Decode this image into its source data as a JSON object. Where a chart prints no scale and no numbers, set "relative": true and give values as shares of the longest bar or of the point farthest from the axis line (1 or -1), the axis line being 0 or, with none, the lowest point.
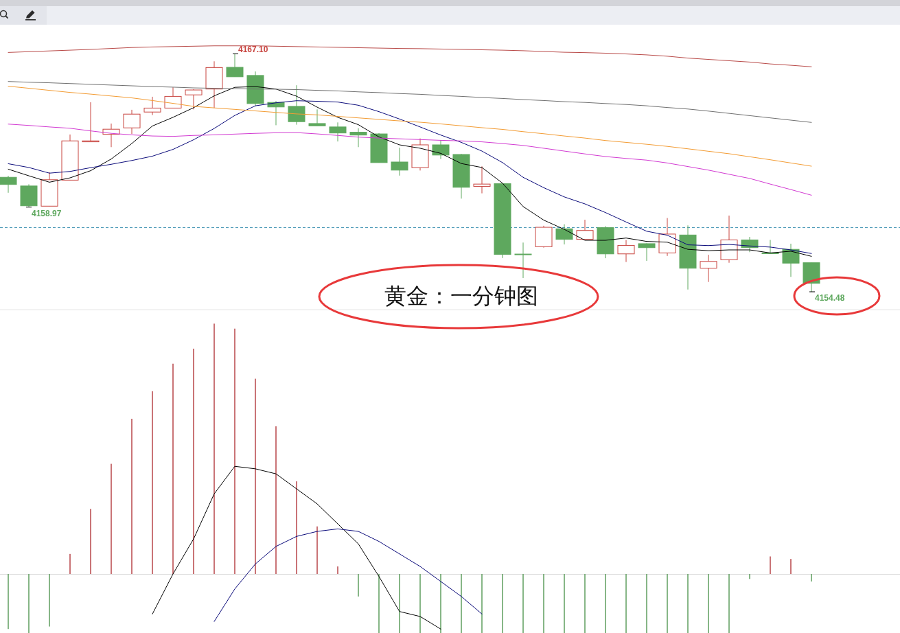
{
  "chart_data": [
    {
      "type": "candlestick",
      "categories": [
        null,
        null,
        null,
        null,
        null,
        null,
        null,
        null,
        null,
        null,
        null,
        null,
        null,
        null,
        null,
        null,
        null,
        null,
        null,
        null,
        null,
        null,
        null,
        null,
        null,
        null,
        null,
        null,
        null,
        null,
        null,
        null,
        null,
        null,
        null,
        null,
        null,
        null,
        null,
        null
      ],
      "ohlc": [
        [
          4160.55,
          4160.63,
          4159.73,
          4160.17
        ],
        [
          4160.09,
          4160.18,
          4158.97,
          4159.04
        ],
        [
          4159.02,
          4160.82,
          4159.02,
          4160.42
        ],
        [
          4160.4,
          4162.82,
          4160.4,
          4162.48
        ],
        [
          4162.43,
          4164.53,
          4162.43,
          4162.48
        ],
        [
          4162.83,
          4163.4,
          4162.15,
          4163.1
        ],
        [
          4163.17,
          4164.13,
          4162.85,
          4163.9
        ],
        [
          4164.01,
          4164.82,
          4163.85,
          4164.22
        ],
        [
          4164.22,
          4165.32,
          4164.22,
          4164.84
        ],
        [
          4164.92,
          4165.22,
          4164.15,
          4165.18
        ],
        [
          4165.23,
          4166.7,
          4164.22,
          4166.37
        ],
        [
          4166.38,
          4167.1,
          4165.88,
          4165.88
        ],
        [
          4165.95,
          4166.16,
          4164.31,
          4164.46
        ],
        [
          4164.52,
          4164.59,
          4163.31,
          4164.28
        ],
        [
          4164.31,
          4165.43,
          4163.34,
          4163.5
        ],
        [
          4163.4,
          4164.15,
          4163.28,
          4163.28
        ],
        [
          4163.22,
          4163.46,
          4162.45,
          4162.9
        ],
        [
          4162.94,
          4163.15,
          4162.15,
          4162.79
        ],
        [
          4162.85,
          4162.89,
          4161.33,
          4161.33
        ],
        [
          4161.36,
          4162.12,
          4160.64,
          4160.93
        ],
        [
          4161.06,
          4162.61,
          4160.91,
          4162.27
        ],
        [
          4162.27,
          4162.52,
          4161.52,
          4161.73
        ],
        [
          4161.76,
          4161.79,
          4159.42,
          4160.02
        ],
        [
          4160.07,
          4161.13,
          4159.7,
          4160.19
        ],
        [
          4160.21,
          4160.21,
          4156.27,
          4156.46
        ],
        [
          4156.48,
          4157.09,
          4155.21,
          4156.48
        ],
        [
          4156.87,
          4157.98,
          4156.82,
          4157.9
        ],
        [
          4157.82,
          4158.06,
          4156.99,
          4157.26
        ],
        [
          4157.26,
          4158.3,
          4157.26,
          4157.73
        ],
        [
          4157.88,
          4157.96,
          4156.26,
          4156.49
        ],
        [
          4156.49,
          4157.23,
          4156.06,
          4156.94
        ],
        [
          4157.03,
          4157.05,
          4156.12,
          4156.82
        ],
        [
          4156.54,
          4158.39,
          4156.38,
          4157.54
        ],
        [
          4157.49,
          4158.0,
          4154.6,
          4155.73
        ],
        [
          4155.73,
          4156.44,
          4155.0,
          4156.09
        ],
        [
          4156.18,
          4158.52,
          4156.02,
          4157.23
        ],
        [
          4157.23,
          4157.39,
          4156.58,
          4156.82
        ],
        [
          4156.54,
          4157.23,
          4156.54,
          4156.54
        ],
        [
          4156.73,
          4157.03,
          4155.27,
          4156.0
        ],
        [
          4156.02,
          4156.02,
          4154.48,
          4154.93
        ]
      ],
      "colors": [
        "#5ea85e",
        "#5ea85e",
        "#c8443f",
        "#c8443f",
        "#c8443f",
        "#c8443f",
        "#c8443f",
        "#c8443f",
        "#c8443f",
        "#c8443f",
        "#c8443f",
        "#5ea85e",
        "#5ea85e",
        "#5ea85e",
        "#5ea85e",
        "#5ea85e",
        "#5ea85e",
        "#5ea85e",
        "#5ea85e",
        "#5ea85e",
        "#c8443f",
        "#5ea85e",
        "#5ea85e",
        "#c8443f",
        "#5ea85e",
        "#5ea85e",
        "#c8443f",
        "#5ea85e",
        "#c8443f",
        "#5ea85e",
        "#c8443f",
        "#5ea85e",
        "#c8443f",
        "#5ea85e",
        "#c8443f",
        "#c8443f",
        "#5ea85e",
        "#5ea85e",
        "#5ea85e",
        "#5ea85e"
      ],
      "series": [
        {
          "type": "line",
          "color": "#000000",
          "values": [
            4160.98,
            4160.63,
            4160.29,
            4160.52,
            4160.9,
            4161.52,
            4162.34,
            4163.27,
            4163.73,
            4164.24,
            4164.87,
            4165.32,
            4165.36,
            4165.23,
            4164.85,
            4164.27,
            4163.73,
            4163.34,
            4162.69,
            4162.27,
            4162.09,
            4161.82,
            4161.28,
            4161.07,
            4160.24,
            4159.0,
            4158.28,
            4157.79,
            4157.21,
            4157.21,
            4157.33,
            4157.15,
            4157.11,
            4156.73,
            4156.66,
            4156.7,
            4156.7,
            4156.54,
            4156.63,
            4156.36
          ]
        },
        {
          "type": "line",
          "color": "#0a0a7a",
          "values": [
            4161.27,
            4161.07,
            4160.77,
            4160.86,
            4161.06,
            4161.24,
            4161.44,
            4161.67,
            4162.03,
            4162.54,
            4163.14,
            4163.83,
            4164.34,
            4164.5,
            4164.61,
            4164.58,
            4164.54,
            4164.37,
            4164.03,
            4163.64,
            4163.22,
            4162.79,
            4162.4,
            4161.94,
            4161.33,
            4160.55,
            4160.0,
            4159.51,
            4159.14,
            4158.68,
            4158.18,
            4157.69,
            4157.48,
            4156.97,
            4156.93,
            4156.99,
            4156.91,
            4156.85,
            4156.7,
            4156.51
          ]
        },
        {
          "type": "line",
          "color": "#d23ad2",
          "values": [
            4163.37,
            4163.3,
            4163.22,
            4163.15,
            4163.01,
            4162.88,
            4162.8,
            4162.74,
            4162.72,
            4162.77,
            4162.8,
            4162.84,
            4162.88,
            4162.91,
            4162.92,
            4162.85,
            4162.77,
            4162.68,
            4162.63,
            4162.59,
            4162.55,
            4162.51,
            4162.48,
            4162.43,
            4162.34,
            4162.24,
            4162.09,
            4161.94,
            4161.79,
            4161.65,
            4161.55,
            4161.46,
            4161.31,
            4161.12,
            4160.93,
            4160.71,
            4160.49,
            4160.19,
            4159.9,
            4159.6
          ]
        },
        {
          "type": "line",
          "color": "#f39c34",
          "values": [
            4165.38,
            4165.27,
            4165.16,
            4165.05,
            4164.96,
            4164.86,
            4164.76,
            4164.62,
            4164.47,
            4164.31,
            4164.23,
            4164.15,
            4164.07,
            4163.99,
            4163.91,
            4163.86,
            4163.78,
            4163.7,
            4163.62,
            4163.54,
            4163.47,
            4163.38,
            4163.28,
            4163.18,
            4163.09,
            4162.97,
            4162.86,
            4162.74,
            4162.63,
            4162.5,
            4162.4,
            4162.3,
            4162.19,
            4162.06,
            4161.93,
            4161.8,
            4161.64,
            4161.48,
            4161.31,
            4161.14
          ]
        },
        {
          "type": "line",
          "color": "#707070",
          "values": [
            4165.63,
            4165.59,
            4165.56,
            4165.52,
            4165.48,
            4165.44,
            4165.4,
            4165.36,
            4165.33,
            4165.29,
            4165.27,
            4165.25,
            4165.23,
            4165.22,
            4165.2,
            4165.16,
            4165.13,
            4165.08,
            4165.04,
            4164.99,
            4164.95,
            4164.89,
            4164.84,
            4164.78,
            4164.73,
            4164.67,
            4164.62,
            4164.56,
            4164.52,
            4164.46,
            4164.41,
            4164.34,
            4164.25,
            4164.17,
            4164.06,
            4163.94,
            4163.82,
            4163.7,
            4163.58,
            4163.46
          ]
        },
        {
          "type": "line",
          "color": "#b94a48",
          "values": [
            4167.17,
            4167.21,
            4167.25,
            4167.29,
            4167.33,
            4167.38,
            4167.43,
            4167.46,
            4167.48,
            4167.5,
            4167.52,
            4167.52,
            4167.52,
            4167.5,
            4167.48,
            4167.46,
            4167.44,
            4167.42,
            4167.4,
            4167.38,
            4167.37,
            4167.35,
            4167.33,
            4167.31,
            4167.29,
            4167.26,
            4167.22,
            4167.18,
            4167.16,
            4167.13,
            4167.09,
            4167.04,
            4166.97,
            4166.87,
            4166.8,
            4166.73,
            4166.66,
            4166.56,
            4166.49,
            4166.41
          ]
        }
      ],
      "ref_lines": [
        {
          "axis": "y",
          "value": 4157.88,
          "color": "#3a8fb0",
          "line_style": "dashed"
        }
      ],
      "annotations": [
        "4167.10",
        "4158.97",
        "4154.48",
        "黄金：一分钟图"
      ]
    },
    {
      "type": "bar",
      "relative": true,
      "categories": [
        null,
        null,
        null,
        null,
        null,
        null,
        null,
        null,
        null,
        null,
        null,
        null,
        null,
        null,
        null,
        null,
        null,
        null,
        null,
        null,
        null,
        null,
        null,
        null,
        null,
        null,
        null,
        null,
        null,
        null,
        null,
        null,
        null,
        null,
        null,
        null,
        null,
        null,
        null,
        null
      ],
      "series": [
        {
          "type": "bar",
          "colors": [
            "#5f9e5f",
            "#5f9e5f",
            "#5f9e5f",
            "#b8454a",
            "#b8454a",
            "#b8454a",
            "#b8454a",
            "#b8454a",
            "#b8454a",
            "#b8454a",
            "#b8454a",
            "#b8454a",
            "#b8454a",
            "#b8454a",
            "#b8454a",
            "#b8454a",
            "#b8454a",
            "#5f9e5f",
            "#5f9e5f",
            "#5f9e5f",
            "#5f9e5f",
            "#5f9e5f",
            "#5f9e5f",
            "#5f9e5f",
            "#5f9e5f",
            "#5f9e5f",
            "#5f9e5f",
            "#5f9e5f",
            "#5f9e5f",
            "#5f9e5f",
            "#5f9e5f",
            "#5f9e5f",
            "#5f9e5f",
            "#5f9e5f",
            "#5f9e5f",
            "#5f9e5f",
            "#5f9e5f",
            "#b8454a",
            "#b8454a",
            "#5f9e5f"
          ],
          "values": [
            -0.22,
            -0.24,
            -0.21,
            0.08,
            0.26,
            0.44,
            0.62,
            0.73,
            0.84,
            0.9,
            1,
            0.98,
            0.78,
            0.59,
            0.37,
            0.19,
            0.03,
            -0.09,
            -0.24,
            -0.24,
            -0.24,
            -0.24,
            -0.24,
            -0.24,
            -0.24,
            -0.24,
            -0.24,
            -0.24,
            -0.24,
            -0.24,
            -0.24,
            -0.24,
            -0.24,
            -0.24,
            -0.24,
            -0.24,
            -0.02,
            0.07,
            0.06,
            -0.03
          ]
        },
        {
          "type": "line",
          "color": "#000000",
          "values": [
            null,
            null,
            null,
            null,
            null,
            null,
            null,
            -0.16,
            0.0,
            0.14,
            0.32,
            0.43,
            0.42,
            0.4,
            0.34,
            0.28,
            0.2,
            0.12,
            -0.01,
            -0.15,
            -0.17,
            -0.22,
            null,
            null,
            null,
            null,
            null,
            null,
            null,
            null,
            null,
            null,
            null,
            null,
            null,
            null,
            null,
            null,
            null,
            null
          ]
        },
        {
          "type": "line",
          "color": "#0a0a7a",
          "values": [
            null,
            null,
            null,
            null,
            null,
            null,
            null,
            null,
            null,
            null,
            -0.19,
            -0.06,
            0.04,
            0.11,
            0.15,
            0.17,
            0.18,
            0.17,
            0.13,
            0.08,
            0.03,
            -0.03,
            -0.09,
            -0.16,
            null,
            null,
            null,
            null,
            null,
            null,
            null,
            null,
            null,
            null,
            null,
            null,
            null,
            null,
            null,
            null
          ]
        }
      ]
    }
  ]
}
